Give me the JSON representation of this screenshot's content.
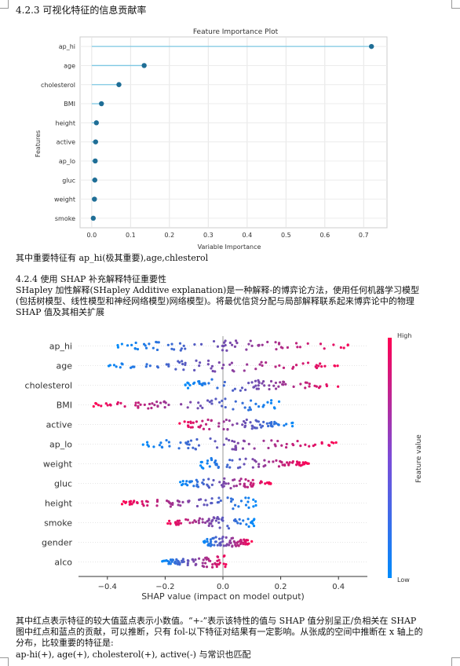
{
  "section1_heading": "4.2.3 可视化特征的信息贡献率",
  "importance_chart": {
    "chart_data": {
      "type": "scatter",
      "title": "Feature Importance Plot",
      "xlabel": "Variable Importance",
      "ylabel": "Features",
      "categories": [
        "ap_hi",
        "age",
        "cholesterol",
        "BMI",
        "height",
        "active",
        "ap_lo",
        "gluc",
        "weight",
        "smoke"
      ],
      "values": [
        0.72,
        0.135,
        0.07,
        0.025,
        0.012,
        0.01,
        0.009,
        0.008,
        0.007,
        0.004
      ],
      "xlim": [
        -0.03,
        0.76
      ],
      "xticks": [
        "0.0",
        "0.1",
        "0.2",
        "0.3",
        "0.4",
        "0.5",
        "0.6",
        "0.7"
      ],
      "grid": true
    }
  },
  "conclusion1": "其中重要特征有 ap_hi(极其重要),age,chlesterol",
  "section2_heading": "4.2.4 使用 SHAP 补充解释特征重要性",
  "section2_para": "SHapley 加性解释(SHapley Additive explanation)是一种解释-的博弈论方法，使用任何机器学习模型(包括树模型、线性模型和神经网络模型)网络模型)。将最优信贷分配与局部解释联系起来博弈论中的物理 SHAP 值及其相关扩展",
  "shap_chart": {
    "chart_data": {
      "type": "scatter",
      "subtype": "shap-beeswarm",
      "xlabel": "SHAP value (impact on model output)",
      "categories": [
        "ap_hi",
        "age",
        "cholesterol",
        "BMI",
        "active",
        "ap_lo",
        "weight",
        "gluc",
        "height",
        "smoke",
        "gender",
        "alco"
      ],
      "xlim": [
        -0.5,
        0.5
      ],
      "xticks": [
        "−0.4",
        "−0.2",
        "0.0",
        "0.2",
        "0.4"
      ],
      "colorbar": {
        "label": "Feature value",
        "high": "High",
        "low": "Low"
      },
      "ranges": [
        {
          "feature": "ap_hi",
          "min": -0.37,
          "max": 0.47
        },
        {
          "feature": "age",
          "min": -0.42,
          "max": 0.42
        },
        {
          "feature": "cholesterol",
          "min": -0.13,
          "max": 0.42
        },
        {
          "feature": "BMI",
          "min": -0.45,
          "max": 0.2
        },
        {
          "feature": "active",
          "min": -0.16,
          "max": 0.25
        },
        {
          "feature": "ap_lo",
          "min": -0.28,
          "max": 0.4
        },
        {
          "feature": "weight",
          "min": -0.08,
          "max": 0.3
        },
        {
          "feature": "gluc",
          "min": -0.15,
          "max": 0.17
        },
        {
          "feature": "height",
          "min": -0.35,
          "max": 0.12
        },
        {
          "feature": "smoke",
          "min": -0.2,
          "max": 0.11
        },
        {
          "feature": "gender",
          "min": -0.07,
          "max": 0.1
        },
        {
          "feature": "alco",
          "min": -0.21,
          "max": 0.02
        }
      ],
      "colors": {
        "high": "#ff0052",
        "low": "#008bfb"
      }
    }
  },
  "conclusion2_para": "其中红点表示特征的较大值蓝点表示小数值。“+-”表示该特性的值与 SHAP 值分别呈正/负相关在 SHAP 图中红点和蓝点的贡献，可以推断，只有 fol-以下特征对结果有一定影响。从张成的空间中推断在 x 轴上的分布，比较重要的特征是:",
  "conclusion2_last": "ap-hi(+), age(+), cholesterol(+), active(-)     与常识也匹配"
}
